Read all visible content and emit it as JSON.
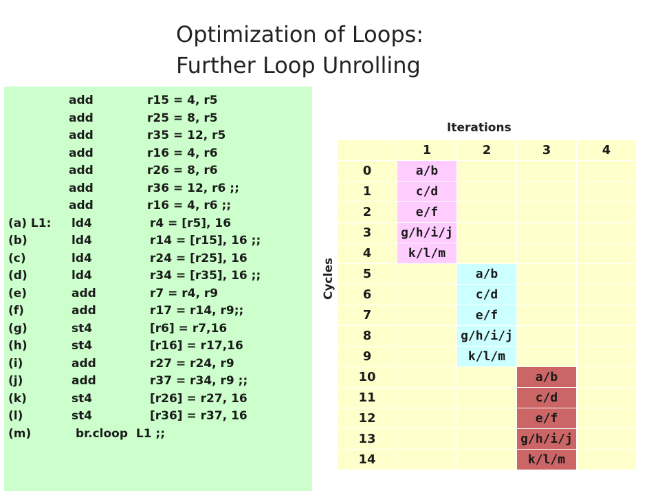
{
  "slide": {
    "title_line1": "Optimization of Loops:",
    "title_line2": "Further Loop Unrolling"
  },
  "code": [
    {
      "label": "",
      "op": "add",
      "args": "r15 = 4, r5"
    },
    {
      "label": "",
      "op": "add",
      "args": "r25 = 8, r5"
    },
    {
      "label": "",
      "op": "add",
      "args": "r35 = 12, r5"
    },
    {
      "label": "",
      "op": "add",
      "args": "r16 = 4, r6"
    },
    {
      "label": "",
      "op": "add",
      "args": "r26 = 8, r6"
    },
    {
      "label": "",
      "op": "add",
      "args": "r36 = 12, r6 ;;"
    },
    {
      "label": "",
      "op": "add",
      "args": "r16 = 4, r6 ;;"
    },
    {
      "label": "(a) L1:",
      "op": "ld4",
      "args": "r4 = [r5], 16"
    },
    {
      "label": "(b)",
      "op": "ld4",
      "args": "r14 = [r15], 16 ;;"
    },
    {
      "label": "(c)",
      "op": "ld4",
      "args": "r24 = [r25], 16"
    },
    {
      "label": "(d)",
      "op": "ld4",
      "args": "r34 = [r35], 16 ;;"
    },
    {
      "label": "(e)",
      "op": "add",
      "args": "r7 = r4, r9"
    },
    {
      "label": "(f)",
      "op": "add",
      "args": "r17 = r14, r9;;"
    },
    {
      "label": "(g)",
      "op": "st4",
      "args": "[r6] = r7,16"
    },
    {
      "label": "(h)",
      "op": "st4",
      "args": "[r16] = r17,16"
    },
    {
      "label": "(i)",
      "op": "add",
      "args": "r27 = r24, r9"
    },
    {
      "label": "(j)",
      "op": "add",
      "args": "r37 = r34, r9 ;;"
    },
    {
      "label": "(k)",
      "op": "st4",
      "args": "[r26] = r27, 16"
    },
    {
      "label": "(l)",
      "op": "st4",
      "args": "[r36] = r37, 16"
    },
    {
      "label": "(m)",
      "op": "br.cloop  L1 ;;",
      "args": ""
    }
  ],
  "table": {
    "iterations_label": "Iterations",
    "cycles_label": "Cycles",
    "columns": [
      "1",
      "2",
      "3",
      "4"
    ],
    "colors": {
      "default": "#ffffcc",
      "iter1": "#ffccff",
      "iter2": "#ccffff",
      "iter3": "#cc6666"
    },
    "rows": [
      {
        "cycle": "0",
        "cells": [
          "a/b",
          "",
          "",
          ""
        ]
      },
      {
        "cycle": "1",
        "cells": [
          "c/d",
          "",
          "",
          ""
        ]
      },
      {
        "cycle": "2",
        "cells": [
          "e/f",
          "",
          "",
          ""
        ]
      },
      {
        "cycle": "3",
        "cells": [
          "g/h/i/j",
          "",
          "",
          ""
        ]
      },
      {
        "cycle": "4",
        "cells": [
          "k/l/m",
          "",
          "",
          ""
        ]
      },
      {
        "cycle": "5",
        "cells": [
          "",
          "a/b",
          "",
          ""
        ]
      },
      {
        "cycle": "6",
        "cells": [
          "",
          "c/d",
          "",
          ""
        ]
      },
      {
        "cycle": "7",
        "cells": [
          "",
          "e/f",
          "",
          ""
        ]
      },
      {
        "cycle": "8",
        "cells": [
          "",
          "g/h/i/j",
          "",
          ""
        ]
      },
      {
        "cycle": "9",
        "cells": [
          "",
          "k/l/m",
          "",
          ""
        ]
      },
      {
        "cycle": "10",
        "cells": [
          "",
          "",
          "a/b",
          ""
        ]
      },
      {
        "cycle": "11",
        "cells": [
          "",
          "",
          "c/d",
          ""
        ]
      },
      {
        "cycle": "12",
        "cells": [
          "",
          "",
          "e/f",
          ""
        ]
      },
      {
        "cycle": "13",
        "cells": [
          "",
          "",
          "g/h/i/j",
          ""
        ]
      },
      {
        "cycle": "14",
        "cells": [
          "",
          "",
          "k/l/m",
          ""
        ]
      }
    ]
  }
}
